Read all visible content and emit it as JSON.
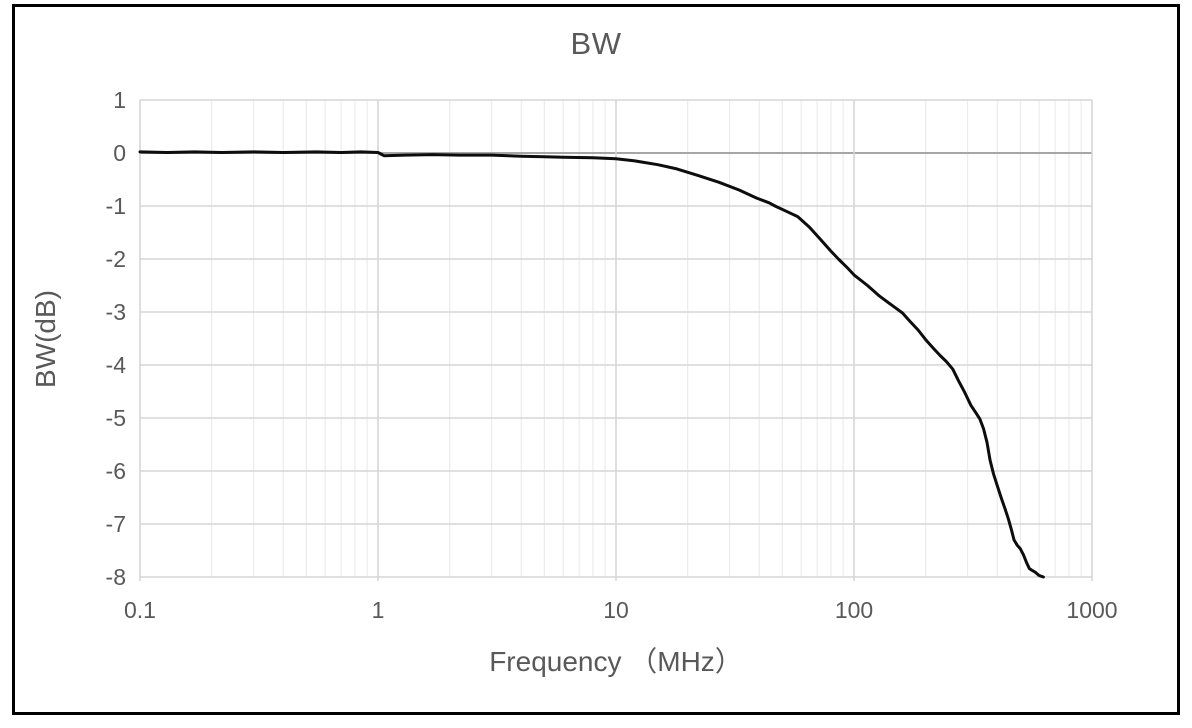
{
  "figure": {
    "background": "#ffffff",
    "frame_color": "#000000"
  },
  "chart_data": {
    "type": "line",
    "title": "BW",
    "xlabel": "Frequency （MHz）",
    "ylabel": "BW(dB)",
    "x_scale": "log",
    "xlim": [
      0.1,
      1000
    ],
    "ylim": [
      -8,
      1
    ],
    "grid": true,
    "minor_grid": true,
    "legend": "none",
    "x_ticks": [
      {
        "value": 0.1,
        "label": "0.1"
      },
      {
        "value": 1,
        "label": "1"
      },
      {
        "value": 10,
        "label": "10"
      },
      {
        "value": 100,
        "label": "100"
      },
      {
        "value": 1000,
        "label": "1000"
      }
    ],
    "y_ticks": [
      {
        "value": 1,
        "label": "1"
      },
      {
        "value": 0,
        "label": "0"
      },
      {
        "value": -1,
        "label": "-1"
      },
      {
        "value": -2,
        "label": "-2"
      },
      {
        "value": -3,
        "label": "-3"
      },
      {
        "value": -4,
        "label": "-4"
      },
      {
        "value": -5,
        "label": "-5"
      },
      {
        "value": -6,
        "label": "-6"
      },
      {
        "value": -7,
        "label": "-7"
      },
      {
        "value": -8,
        "label": "-8"
      }
    ],
    "colors": {
      "line": "#0d0d0d",
      "grid_major": "#d6d6d6",
      "grid_minor": "#ececec",
      "zero_axis": "#a6a6a6",
      "text": "#595959"
    },
    "series": [
      {
        "name": "BW",
        "points": [
          [
            0.1,
            0.02
          ],
          [
            0.13,
            0.01
          ],
          [
            0.17,
            0.02
          ],
          [
            0.22,
            0.01
          ],
          [
            0.3,
            0.02
          ],
          [
            0.4,
            0.01
          ],
          [
            0.55,
            0.02
          ],
          [
            0.7,
            0.01
          ],
          [
            0.85,
            0.02
          ],
          [
            1.0,
            0.01
          ],
          [
            1.06,
            -0.05
          ],
          [
            1.3,
            -0.04
          ],
          [
            1.7,
            -0.03
          ],
          [
            2.2,
            -0.04
          ],
          [
            3,
            -0.04
          ],
          [
            4,
            -0.06
          ],
          [
            5,
            -0.07
          ],
          [
            6,
            -0.08
          ],
          [
            8,
            -0.09
          ],
          [
            10,
            -0.11
          ],
          [
            12,
            -0.15
          ],
          [
            15,
            -0.22
          ],
          [
            18,
            -0.3
          ],
          [
            22,
            -0.42
          ],
          [
            27,
            -0.55
          ],
          [
            33,
            -0.7
          ],
          [
            39,
            -0.85
          ],
          [
            44,
            -0.94
          ],
          [
            47,
            -1.01
          ],
          [
            52,
            -1.1
          ],
          [
            58,
            -1.2
          ],
          [
            65,
            -1.4
          ],
          [
            72,
            -1.62
          ],
          [
            80,
            -1.85
          ],
          [
            86,
            -2.0
          ],
          [
            93,
            -2.15
          ],
          [
            100,
            -2.3
          ],
          [
            114,
            -2.5
          ],
          [
            128,
            -2.7
          ],
          [
            143,
            -2.86
          ],
          [
            160,
            -3.02
          ],
          [
            172,
            -3.18
          ],
          [
            186,
            -3.34
          ],
          [
            200,
            -3.52
          ],
          [
            215,
            -3.68
          ],
          [
            230,
            -3.82
          ],
          [
            245,
            -3.94
          ],
          [
            260,
            -4.08
          ],
          [
            275,
            -4.3
          ],
          [
            292,
            -4.52
          ],
          [
            310,
            -4.76
          ],
          [
            325,
            -4.9
          ],
          [
            338,
            -5.02
          ],
          [
            350,
            -5.2
          ],
          [
            362,
            -5.46
          ],
          [
            373,
            -5.8
          ],
          [
            386,
            -6.06
          ],
          [
            400,
            -6.28
          ],
          [
            415,
            -6.5
          ],
          [
            430,
            -6.7
          ],
          [
            445,
            -6.9
          ],
          [
            458,
            -7.1
          ],
          [
            470,
            -7.3
          ],
          [
            485,
            -7.4
          ],
          [
            500,
            -7.47
          ],
          [
            515,
            -7.58
          ],
          [
            530,
            -7.72
          ],
          [
            545,
            -7.84
          ],
          [
            562,
            -7.88
          ],
          [
            578,
            -7.91
          ],
          [
            598,
            -7.97
          ],
          [
            625,
            -8.0
          ]
        ]
      }
    ]
  }
}
